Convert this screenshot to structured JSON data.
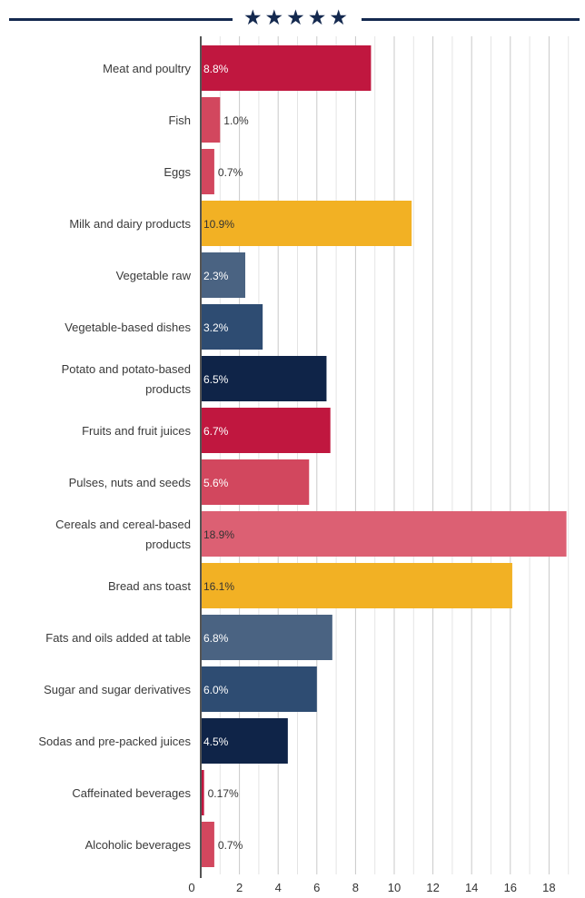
{
  "header": {
    "stars": "★★★★★",
    "line_color": "#14294f"
  },
  "chart_data": {
    "type": "bar",
    "orientation": "horizontal",
    "title": "",
    "xlabel": "",
    "ylabel": "",
    "xlim": [
      0,
      20
    ],
    "xticks": [
      0,
      2,
      4,
      6,
      8,
      10,
      12,
      14,
      16,
      18
    ],
    "grid": "vertical",
    "categories": [
      [
        "Meat and poultry"
      ],
      [
        "Fish"
      ],
      [
        "Eggs"
      ],
      [
        "Milk and dairy products"
      ],
      [
        "Vegetable raw"
      ],
      [
        "Vegetable-based dishes"
      ],
      [
        "Potato and potato-based",
        "products"
      ],
      [
        "Fruits and fruit juices"
      ],
      [
        "Pulses, nuts and seeds"
      ],
      [
        "Cereals and cereal-based",
        "products"
      ],
      [
        "Bread ans toast"
      ],
      [
        "Fats and oils added at table"
      ],
      [
        "Sugar and sugar derivatives"
      ],
      [
        "Sodas and pre-packed juices"
      ],
      [
        "Caffeinated beverages"
      ],
      [
        "Alcoholic beverages"
      ]
    ],
    "values": [
      8.8,
      1.0,
      0.7,
      10.9,
      2.3,
      3.2,
      6.5,
      6.7,
      5.6,
      18.9,
      16.1,
      6.8,
      6.0,
      4.5,
      0.17,
      0.7
    ],
    "value_labels": [
      "8.8%",
      "1.0%",
      "0.7%",
      "10.9%",
      "2.3%",
      "3.2%",
      "6.5%",
      "6.7%",
      "5.6%",
      "18.9%",
      "16.1%",
      "6.8%",
      "6.0%",
      "4.5%",
      "0.17%",
      "0.7%"
    ],
    "colors": [
      "#c0173f",
      "#d2475e",
      "#d2475e",
      "#f2b124",
      "#4a6382",
      "#2e4c72",
      "#0f2448",
      "#c0173f",
      "#d2475e",
      "#dc6073",
      "#f2b124",
      "#4a6382",
      "#2e4c72",
      "#0f2448",
      "#c0173f",
      "#d2475e"
    ],
    "label_inside": [
      true,
      false,
      false,
      true,
      true,
      true,
      true,
      true,
      true,
      true,
      true,
      true,
      true,
      true,
      false,
      false
    ],
    "label_colors": [
      "#ffffff",
      "#333333",
      "#333333",
      "#333333",
      "#ffffff",
      "#ffffff",
      "#ffffff",
      "#ffffff",
      "#ffffff",
      "#333333",
      "#333333",
      "#ffffff",
      "#ffffff",
      "#ffffff",
      "#333333",
      "#333333"
    ]
  }
}
